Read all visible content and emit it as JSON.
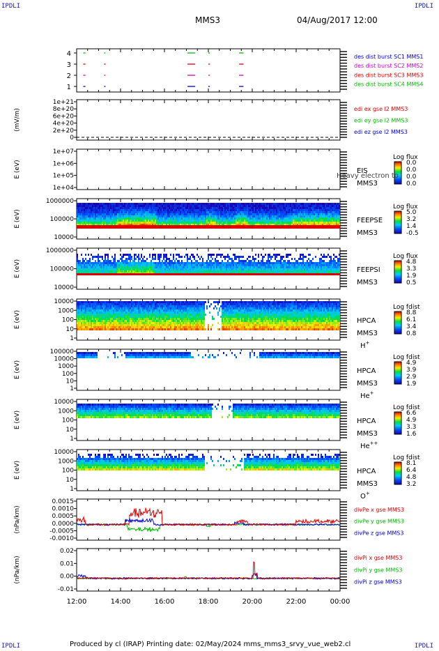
{
  "header": {
    "corner_tl": "IPDLI",
    "corner_tr": "IPDLI",
    "corner_bl": "IPDLI",
    "corner_br": "IPDLI",
    "spacecraft": "MMS3",
    "datetime": "04/Aug/2017 12:00"
  },
  "footer": {
    "text": "Produced by cl (IRAP)   Printing date: 02/May/2024   mms_mms3_srvy_vue_web2.cl"
  },
  "colors": {
    "blue": "#0000cc",
    "magenta": "#cc00cc",
    "red": "#dd0000",
    "green": "#00bb00"
  },
  "chart_data": [
    {
      "type": "timeline",
      "panel": "burst",
      "yticks": [
        "4",
        "3",
        "2",
        "1"
      ],
      "legend": [
        {
          "text": "des dist burst SC1 MMS1",
          "color": "#0000cc"
        },
        {
          "text": "des dist burst SC2 MMS2",
          "color": "#cc00cc"
        },
        {
          "text": "des dist burst SC3 MMS3",
          "color": "#dd0000"
        },
        {
          "text": "des dist burst SC4 MMS4",
          "color": "#00bb00"
        }
      ],
      "intervals_hours": [
        [
          12.3,
          12.4
        ],
        [
          13.25,
          13.3
        ],
        [
          17.05,
          17.4
        ],
        [
          18.0,
          18.05
        ],
        [
          19.4,
          19.6
        ]
      ]
    },
    {
      "type": "line",
      "panel": "edi",
      "ylabel": "(mV/m)",
      "yticks": [
        "1e+21",
        "8e+20",
        "6e+20",
        "4e+20",
        "2e+20",
        "0"
      ],
      "legend": [
        {
          "text": "edi ex gse l2 MMS3",
          "color": "#dd0000"
        },
        {
          "text": "edi ey gse l2 MMS3",
          "color": "#00bb00"
        },
        {
          "text": "edi ez gse l2 MMS3",
          "color": "#0000cc"
        }
      ]
    },
    {
      "type": "heatmap",
      "panel": "eis",
      "ylabel": "E (eV)",
      "yticks": [
        "1e+07",
        "1e+06",
        "1e+05",
        "1e+04"
      ],
      "side_labels": [
        "EIS",
        "MMS3"
      ],
      "overlay_text": "Heavy electron to",
      "colorbar_title": "Log flux",
      "colorbar_ticks": [
        "0.0",
        "0.0",
        "0.0",
        "0.0"
      ]
    },
    {
      "type": "heatmap",
      "panel": "feepse",
      "ylabel": "E (eV)",
      "yticks": [
        "1000000",
        "100000",
        "10000"
      ],
      "side_labels": [
        "FEEPSE",
        "MMS3"
      ],
      "colorbar_title": "Log flux",
      "colorbar_ticks": [
        "5.0",
        "3.2",
        "1.4",
        "-0.5"
      ]
    },
    {
      "type": "heatmap",
      "panel": "feepsi",
      "ylabel": "E (eV)",
      "yticks": [
        "1000000",
        "100000",
        "10000"
      ],
      "side_labels": [
        "FEEPSI",
        "MMS3"
      ],
      "colorbar_title": "Log flux",
      "colorbar_ticks": [
        "4.8",
        "3.3",
        "1.9",
        "0.5"
      ]
    },
    {
      "type": "heatmap",
      "panel": "hpca_h",
      "ylabel": "E (eV)",
      "yticks": [
        "10000",
        "1000",
        "100",
        "10",
        "1"
      ],
      "side_labels": [
        "HPCA",
        "MMS3"
      ],
      "species": "H",
      "species_charge": "+",
      "colorbar_title": "Log fdist",
      "colorbar_ticks": [
        "8.8",
        "6.1",
        "3.4",
        "0.8"
      ]
    },
    {
      "type": "heatmap",
      "panel": "hpca_he",
      "ylabel": "E (eV)",
      "yticks": [
        "100000",
        "10000",
        "1000",
        "100",
        "10",
        "1"
      ],
      "side_labels": [
        "HPCA",
        "MMS3"
      ],
      "species": "He",
      "species_charge": "+",
      "colorbar_title": "Log fdist",
      "colorbar_ticks": [
        "4.9",
        "3.9",
        "2.9",
        "1.9"
      ]
    },
    {
      "type": "heatmap",
      "panel": "hpca_hepp",
      "ylabel": "E (eV)",
      "yticks": [
        "10000",
        "1000",
        "100",
        "10",
        "1"
      ],
      "side_labels": [
        "HPCA",
        "MMS3"
      ],
      "species": "He",
      "species_charge": "++",
      "colorbar_title": "Log fdist",
      "colorbar_ticks": [
        "6.6",
        "4.9",
        "3.3",
        "1.6"
      ]
    },
    {
      "type": "heatmap",
      "panel": "hpca_o",
      "ylabel": "E (eV)",
      "yticks": [
        "10000",
        "1000",
        "100",
        "10",
        "1"
      ],
      "side_labels": [
        "HPCA",
        "MMS3"
      ],
      "species": "O",
      "species_charge": "+",
      "colorbar_title": "Log fdist",
      "colorbar_ticks": [
        "8.1",
        "6.4",
        "4.8",
        "3.2"
      ]
    },
    {
      "type": "line",
      "panel": "divpe",
      "ylabel": "(nPa/km)",
      "yticks": [
        "0.0015",
        "0.0010",
        "0.0005",
        "0.0000",
        "-0.0005",
        "-0.0010"
      ],
      "legend": [
        {
          "text": "divPe x gse MMS3",
          "color": "#dd0000"
        },
        {
          "text": "divPe y gse MMS3",
          "color": "#00bb00"
        },
        {
          "text": "divPe z gse MMS3",
          "color": "#0000cc"
        }
      ]
    },
    {
      "type": "line",
      "panel": "divpi",
      "ylabel": "(nPa/km)",
      "yticks": [
        "0.02",
        "0.01",
        "0.00",
        "-0.01"
      ],
      "legend": [
        {
          "text": "divPi x gse MMS3",
          "color": "#dd0000"
        },
        {
          "text": "divPi y gse MMS3",
          "color": "#00bb00"
        },
        {
          "text": "divPi z gse MMS3",
          "color": "#0000cc"
        }
      ]
    }
  ],
  "xaxis": {
    "ticks": [
      "12:00",
      "14:00",
      "16:00",
      "18:00",
      "20:00",
      "22:00",
      "00:00"
    ],
    "range_hours": [
      12,
      24
    ]
  }
}
